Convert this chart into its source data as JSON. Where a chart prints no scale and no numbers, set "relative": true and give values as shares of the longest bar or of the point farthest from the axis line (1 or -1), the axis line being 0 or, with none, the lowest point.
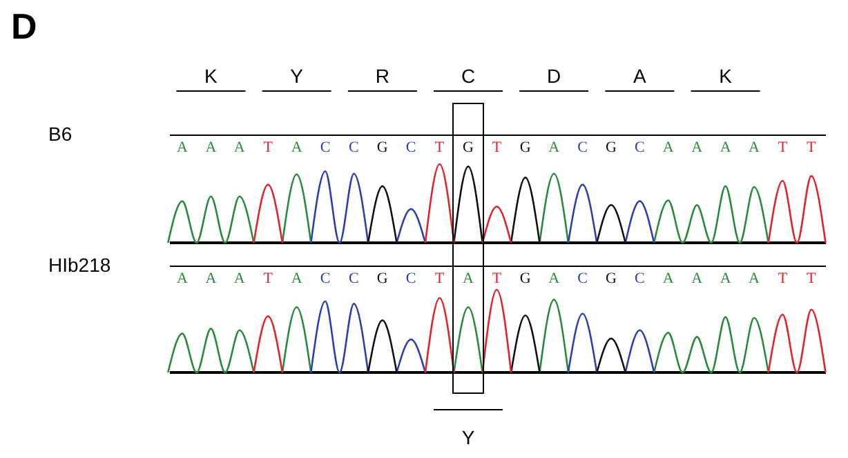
{
  "chart_data": [
    {
      "type": "line",
      "title": "D",
      "ylabel": "B6",
      "relative": true,
      "grid": false,
      "tick_labels": "x",
      "annotations": [
        "K",
        "Y",
        "R",
        "C",
        "D",
        "A",
        "K"
      ],
      "categories": [
        null,
        "A",
        null,
        "A",
        null,
        "A",
        null,
        "T",
        null,
        "A",
        null,
        "C",
        null,
        "C",
        null,
        "G",
        null,
        "C",
        null,
        "T",
        null,
        "G",
        null,
        "T",
        null,
        "G",
        null,
        "A",
        null,
        "C",
        null,
        "G",
        null,
        "C",
        null,
        "A",
        null,
        "A",
        null,
        "A",
        null,
        "A",
        null,
        "T",
        null,
        "T",
        null
      ],
      "series": [
        {
          "color": "#2a8a3c",
          "values": [
            0,
            0.53,
            0,
            0.59,
            0,
            0.59,
            0,
            null,
            0,
            0.87,
            0,
            null,
            null,
            null,
            null,
            null,
            null,
            null,
            null,
            null,
            null,
            null,
            null,
            null,
            null,
            null,
            0,
            0.88,
            0,
            null,
            null,
            null,
            null,
            null,
            0,
            0.54,
            0,
            0.48,
            0,
            0.72,
            0,
            0.71,
            0,
            null,
            null,
            null,
            null
          ]
        },
        {
          "color": "#2b3fb0",
          "values": [
            null,
            null,
            null,
            null,
            null,
            null,
            null,
            null,
            null,
            null,
            0,
            0.91,
            0,
            0.88,
            0,
            null,
            0,
            0.43,
            0,
            null,
            null,
            null,
            null,
            null,
            null,
            null,
            null,
            null,
            0,
            0.74,
            0,
            null,
            0,
            0.53,
            0,
            null,
            null,
            null,
            null,
            null,
            null,
            null,
            null,
            null,
            null,
            null,
            null
          ]
        },
        {
          "color": "#111111",
          "values": [
            null,
            null,
            null,
            null,
            null,
            null,
            null,
            null,
            null,
            null,
            null,
            null,
            null,
            null,
            0,
            0.72,
            0,
            null,
            null,
            null,
            0,
            0.97,
            0,
            null,
            0,
            0.83,
            0,
            null,
            null,
            null,
            0,
            0.48,
            0,
            null,
            null,
            null,
            null,
            null,
            null,
            null,
            null,
            null,
            null,
            null,
            null,
            null,
            null
          ]
        },
        {
          "color": "#e3222b",
          "values": [
            null,
            null,
            null,
            null,
            null,
            null,
            0,
            0.74,
            0,
            null,
            null,
            null,
            null,
            null,
            null,
            null,
            null,
            null,
            0,
            1.0,
            0,
            null,
            0,
            0.46,
            0,
            null,
            null,
            null,
            null,
            null,
            null,
            null,
            null,
            null,
            null,
            null,
            null,
            null,
            null,
            null,
            null,
            null,
            0,
            0.79,
            0,
            0.85,
            0
          ]
        }
      ]
    },
    {
      "type": "line",
      "ylabel": "HIb218",
      "relative": true,
      "grid": false,
      "tick_labels": "x",
      "annotations": [
        "Y"
      ],
      "categories": [
        null,
        "A",
        null,
        "A",
        null,
        "A",
        null,
        "T",
        null,
        "A",
        null,
        "C",
        null,
        "C",
        null,
        "G",
        null,
        "C",
        null,
        "T",
        null,
        "A",
        null,
        "T",
        null,
        "G",
        null,
        "A",
        null,
        "C",
        null,
        "G",
        null,
        "C",
        null,
        "A",
        null,
        "A",
        null,
        "A",
        null,
        "A",
        null,
        "T",
        null,
        "T",
        null
      ],
      "series": [
        {
          "color": "#2a8a3c",
          "values": [
            0,
            0.47,
            0,
            0.53,
            0,
            0.51,
            0,
            null,
            0,
            0.79,
            0,
            null,
            null,
            null,
            null,
            null,
            null,
            null,
            null,
            null,
            0,
            0.79,
            0,
            null,
            null,
            null,
            0,
            0.88,
            0,
            null,
            null,
            null,
            null,
            null,
            0,
            0.48,
            0,
            0.43,
            0,
            0.67,
            0,
            0.66,
            0,
            null,
            null,
            null,
            null
          ]
        },
        {
          "color": "#2b3fb0",
          "values": [
            null,
            null,
            null,
            null,
            null,
            null,
            null,
            null,
            null,
            null,
            0,
            0.86,
            0,
            0.83,
            0,
            null,
            0,
            0.4,
            0,
            null,
            null,
            null,
            null,
            null,
            null,
            null,
            null,
            null,
            0,
            0.71,
            0,
            null,
            0,
            0.51,
            0,
            null,
            null,
            null,
            null,
            null,
            null,
            null,
            null,
            null,
            null,
            null,
            null
          ]
        },
        {
          "color": "#111111",
          "values": [
            null,
            null,
            null,
            null,
            null,
            null,
            null,
            null,
            null,
            null,
            null,
            null,
            null,
            null,
            0,
            0.63,
            0,
            null,
            null,
            null,
            null,
            null,
            null,
            null,
            0,
            0.69,
            0,
            null,
            null,
            null,
            0,
            0.41,
            0,
            null,
            null,
            null,
            null,
            null,
            null,
            null,
            null,
            null,
            null,
            null,
            null,
            null,
            null
          ]
        },
        {
          "color": "#e3222b",
          "values": [
            null,
            null,
            null,
            null,
            null,
            null,
            0,
            0.68,
            0,
            null,
            null,
            null,
            null,
            null,
            null,
            null,
            null,
            null,
            0,
            0.9,
            0,
            null,
            0,
            1.0,
            0,
            null,
            null,
            null,
            null,
            null,
            null,
            null,
            null,
            null,
            null,
            null,
            null,
            null,
            null,
            null,
            null,
            null,
            0,
            0.7,
            0,
            0.76,
            0
          ]
        }
      ]
    }
  ]
}
